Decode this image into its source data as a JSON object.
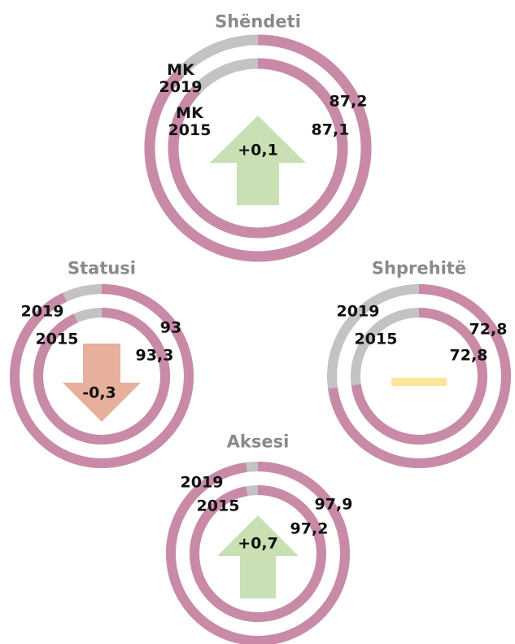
{
  "chart_data": [
    {
      "type": "rings",
      "title": "Shëndeti",
      "ylim": [
        0,
        100
      ],
      "track_color": "#c4c2c2",
      "series": [
        {
          "name": "MK 2019",
          "color": "#c98aa8",
          "values": [
            87.2
          ],
          "value_labels": [
            "87,2"
          ]
        },
        {
          "name": "MK 2015",
          "color": "#c98aa8",
          "values": [
            87.1
          ],
          "value_labels": [
            "87,1"
          ]
        }
      ],
      "change": 0.1,
      "change_label": "+0,1",
      "change_color": "#c8e0b4"
    },
    {
      "type": "rings",
      "title": "Statusi",
      "ylim": [
        0,
        100
      ],
      "track_color": "#c4c2c2",
      "series": [
        {
          "name": "2019",
          "color": "#c98aa8",
          "values": [
            93
          ],
          "value_labels": [
            "93"
          ]
        },
        {
          "name": "2015",
          "color": "#c98aa8",
          "values": [
            93.3
          ],
          "value_labels": [
            "93,3"
          ]
        }
      ],
      "change": -0.3,
      "change_label": "-0,3",
      "change_color": "#e6b09c"
    },
    {
      "type": "rings",
      "title": "Shprehitë",
      "ylim": [
        0,
        100
      ],
      "track_color": "#c4c2c2",
      "series": [
        {
          "name": "2019",
          "color": "#c98aa8",
          "values": [
            72.8
          ],
          "value_labels": [
            "72,8"
          ]
        },
        {
          "name": "2015",
          "color": "#c98aa8",
          "values": [
            72.8
          ],
          "value_labels": [
            "72,8"
          ]
        }
      ],
      "change": 0,
      "change_color": "#fde59a"
    },
    {
      "type": "rings",
      "title": "Aksesi",
      "ylim": [
        0,
        100
      ],
      "track_color": "#c4c2c2",
      "series": [
        {
          "name": "2019",
          "color": "#c98aa8",
          "values": [
            97.9
          ],
          "value_labels": [
            "97,9"
          ]
        },
        {
          "name": "2015",
          "color": "#c98aa8",
          "values": [
            97.2
          ],
          "value_labels": [
            "97,2"
          ]
        }
      ],
      "change": 0.7,
      "change_label": "+0,7",
      "change_color": "#c8e0b4"
    }
  ]
}
